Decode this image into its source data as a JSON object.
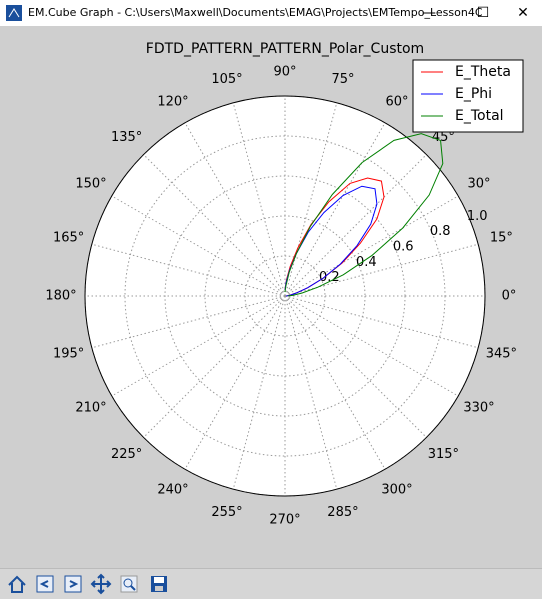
{
  "window": {
    "title": "EM.Cube Graph - C:\\Users\\Maxwell\\Documents\\EMAG\\Projects\\EMTempo_Lesson4C"
  },
  "chart_data": {
    "type": "polar",
    "title": "FDTD_PATTERN_PATTERN_Polar_Custom",
    "x": [
      0,
      5,
      10,
      15,
      20,
      25,
      30,
      35,
      40,
      45,
      50,
      55,
      60,
      65,
      70,
      75,
      80,
      85,
      90
    ],
    "series": [
      {
        "name": "E_Theta",
        "color": "#ff0000",
        "values": [
          0.005,
          0.01,
          0.026,
          0.059,
          0.12,
          0.21,
          0.33,
          0.46,
          0.6,
          0.7,
          0.75,
          0.72,
          0.65,
          0.52,
          0.38,
          0.25,
          0.15,
          0.08,
          0.03
        ]
      },
      {
        "name": "E_Phi",
        "color": "#0000ff",
        "values": [
          0.005,
          0.01,
          0.03,
          0.06,
          0.12,
          0.21,
          0.32,
          0.44,
          0.56,
          0.65,
          0.7,
          0.67,
          0.58,
          0.46,
          0.34,
          0.22,
          0.13,
          0.07,
          0.03
        ]
      },
      {
        "name": "E_Total",
        "color": "#008000",
        "values": [
          0.014,
          0.038,
          0.087,
          0.17,
          0.31,
          0.48,
          0.68,
          0.88,
          1.03,
          1.1,
          1.06,
          0.95,
          0.77,
          0.56,
          0.37,
          0.22,
          0.12,
          0.05,
          0.02
        ]
      }
    ],
    "xlim": [
      0,
      360
    ],
    "xticks": [
      {
        "value": 0,
        "label": "0°"
      },
      {
        "value": 15,
        "label": "15°"
      },
      {
        "value": 30,
        "label": "30°"
      },
      {
        "value": 45,
        "label": "45°"
      },
      {
        "value": 60,
        "label": "60°"
      },
      {
        "value": 75,
        "label": "75°"
      },
      {
        "value": 90,
        "label": "90°"
      },
      {
        "value": 105,
        "label": "105°"
      },
      {
        "value": 120,
        "label": "120°"
      },
      {
        "value": 135,
        "label": "135°"
      },
      {
        "value": 150,
        "label": "150°"
      },
      {
        "value": 165,
        "label": "165°"
      },
      {
        "value": 180,
        "label": "180°"
      },
      {
        "value": 195,
        "label": "195°"
      },
      {
        "value": 210,
        "label": "210°"
      },
      {
        "value": 225,
        "label": "225°"
      },
      {
        "value": 240,
        "label": "240°"
      },
      {
        "value": 255,
        "label": "255°"
      },
      {
        "value": 270,
        "label": "270°"
      },
      {
        "value": 285,
        "label": "285°"
      },
      {
        "value": 300,
        "label": "300°"
      },
      {
        "value": 315,
        "label": "315°"
      },
      {
        "value": 330,
        "label": "330°"
      },
      {
        "value": 345,
        "label": "345°"
      }
    ],
    "ylim": [
      0,
      1
    ],
    "yticks": [
      0.2,
      0.4,
      0.6,
      0.8,
      {
        "value": 1,
        "label": "1.0"
      }
    ],
    "grid": true,
    "legend": "upper right"
  }
}
